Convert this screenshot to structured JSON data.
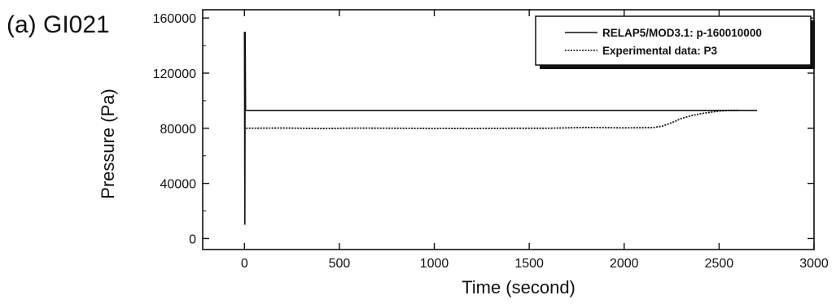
{
  "panel_label": "(a) GI021",
  "chart_data": {
    "type": "line",
    "xlabel": "Time (second)",
    "ylabel": "Pressure (Pa)",
    "xlim": [
      -220,
      3000
    ],
    "ylim": [
      -8000,
      166000
    ],
    "xticks": [
      0,
      500,
      1000,
      1500,
      2000,
      2500,
      3000
    ],
    "yticks": [
      0,
      40000,
      80000,
      120000,
      160000
    ],
    "grid": false,
    "legend": "top-right",
    "series": [
      {
        "name": "RELAP5/MOD3.1: p-160010000",
        "style": "solid",
        "x": [
          0,
          2,
          4,
          6,
          6,
          8,
          10,
          2700
        ],
        "y": [
          150000,
          10000,
          150000,
          93000,
          93000,
          93000,
          93000,
          93000
        ]
      },
      {
        "name": "Experimental data: P3",
        "style": "dotted",
        "x": [
          8,
          200,
          400,
          600,
          800,
          1000,
          1200,
          1400,
          1600,
          1800,
          2000,
          2150,
          2200,
          2250,
          2300,
          2350,
          2400,
          2450,
          2500,
          2550,
          2600
        ],
        "y": [
          80000,
          80200,
          79800,
          80100,
          80000,
          79900,
          79800,
          80000,
          80000,
          80600,
          80300,
          80500,
          81500,
          84000,
          87000,
          89000,
          90500,
          91500,
          92500,
          93000,
          93000
        ]
      }
    ]
  }
}
